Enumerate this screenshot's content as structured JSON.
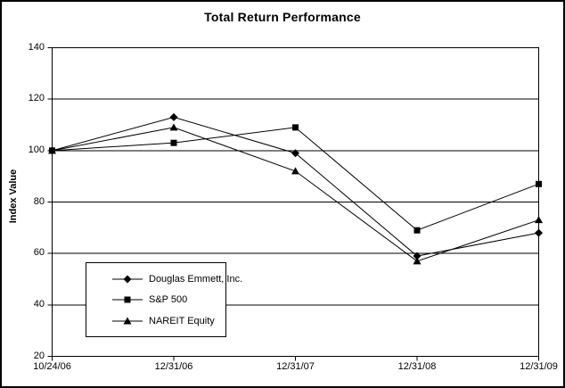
{
  "chart_data": {
    "type": "line",
    "title": "Total Return Performance",
    "ylabel": "Index Value",
    "xlabel": "",
    "categories": [
      "10/24/06",
      "12/31/06",
      "12/31/07",
      "12/31/08",
      "12/31/09"
    ],
    "series": [
      {
        "name": "Douglas Emmett, Inc.",
        "marker": "diamond",
        "values": [
          100,
          113,
          99,
          59,
          68
        ]
      },
      {
        "name": "S&P 500",
        "marker": "square",
        "values": [
          100,
          103,
          109,
          69,
          87
        ]
      },
      {
        "name": "NAREIT Equity",
        "marker": "triangle",
        "values": [
          100,
          109,
          92,
          57,
          73
        ]
      }
    ],
    "yticks": [
      20,
      40,
      60,
      80,
      100,
      120,
      140
    ],
    "ylim": [
      20,
      140
    ],
    "grid": "horizontal",
    "legend_position": "inside-bottom-left",
    "colors": {
      "line": "#000000",
      "marker": "#000000",
      "background": "#ffffff",
      "border": "#000000"
    }
  }
}
